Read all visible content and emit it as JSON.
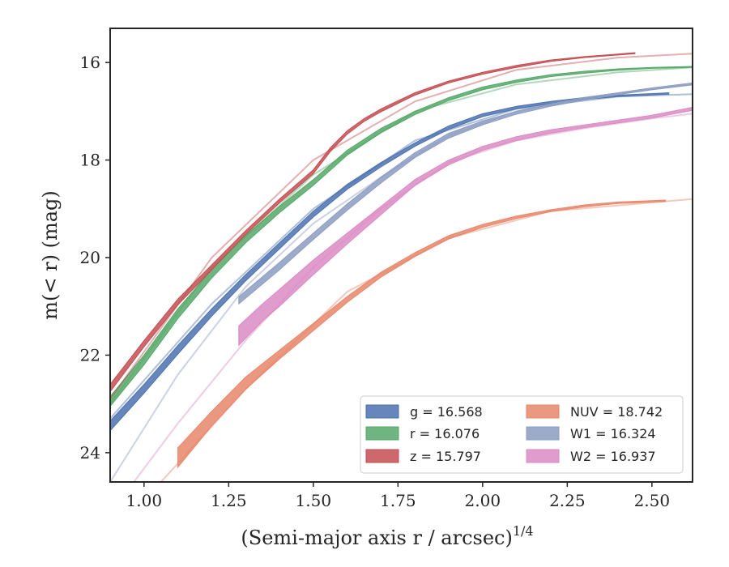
{
  "chart_data": {
    "type": "line",
    "xlabel": "(Semi-major axis r / arcsec)",
    "xlabel_exponent": "1/4",
    "ylabel": "m(< r) (mag)",
    "xlim": [
      0.9,
      2.62
    ],
    "ylim": [
      24.6,
      15.3
    ],
    "y_inverted": true,
    "xticks": [
      1.0,
      1.25,
      1.5,
      1.75,
      2.0,
      2.25,
      2.5
    ],
    "xtick_labels": [
      "1.00",
      "1.25",
      "1.50",
      "1.75",
      "2.00",
      "2.25",
      "2.50"
    ],
    "yticks": [
      16,
      18,
      20,
      22,
      24
    ],
    "ytick_labels": [
      "16",
      "18",
      "20",
      "22",
      "24"
    ],
    "grid": false,
    "legend_position": "lower-right",
    "legend_columns": 2,
    "series": [
      {
        "name": "g = 16.568",
        "band": "g",
        "mag": "16.568",
        "color": "#4C72B0",
        "legend_col": 0,
        "faint_x": [
          0.9,
          1.2,
          1.5,
          1.8,
          2.1,
          2.4,
          2.62
        ],
        "faint_y": [
          23.3,
          20.95,
          19.0,
          17.6,
          16.95,
          16.7,
          16.65
        ],
        "x": [
          0.9,
          1.0,
          1.1,
          1.2,
          1.3,
          1.4,
          1.5,
          1.6,
          1.7,
          1.8,
          1.9,
          2.0,
          2.1,
          2.2,
          2.3,
          2.4,
          2.55
        ],
        "y_low": [
          23.35,
          22.6,
          21.8,
          21.05,
          20.35,
          19.7,
          19.05,
          18.5,
          18.05,
          17.65,
          17.3,
          17.05,
          16.9,
          16.8,
          16.72,
          16.67,
          16.62
        ],
        "y_high": [
          23.55,
          22.78,
          21.98,
          21.2,
          20.48,
          19.82,
          19.17,
          18.6,
          18.14,
          17.72,
          17.37,
          17.11,
          16.95,
          16.84,
          16.76,
          16.7,
          16.65
        ]
      },
      {
        "name": "r = 16.076",
        "band": "r",
        "mag": "16.076",
        "color": "#55A868",
        "legend_col": 0,
        "faint_x": [
          0.9,
          1.2,
          1.5,
          1.8,
          2.1,
          2.4,
          2.62
        ],
        "faint_y": [
          23.0,
          20.2,
          18.3,
          17.0,
          16.45,
          16.2,
          16.1
        ],
        "x": [
          0.9,
          1.0,
          1.1,
          1.2,
          1.3,
          1.4,
          1.5,
          1.6,
          1.7,
          1.8,
          1.9,
          2.0,
          2.1,
          2.2,
          2.3,
          2.4,
          2.5,
          2.62
        ],
        "y_low": [
          22.85,
          22.0,
          21.05,
          20.25,
          19.55,
          18.95,
          18.4,
          17.8,
          17.35,
          17.0,
          16.72,
          16.5,
          16.36,
          16.25,
          16.18,
          16.13,
          16.1,
          16.08
        ],
        "y_high": [
          23.05,
          22.2,
          21.25,
          20.42,
          19.7,
          19.08,
          18.52,
          17.9,
          17.44,
          17.07,
          16.78,
          16.56,
          16.41,
          16.29,
          16.22,
          16.16,
          16.12,
          16.1
        ]
      },
      {
        "name": "z = 15.797",
        "band": "z",
        "mag": "15.797",
        "color": "#C44E52",
        "legend_col": 0,
        "faint_x": [
          0.9,
          1.2,
          1.5,
          1.8,
          2.1,
          2.4,
          2.62
        ],
        "faint_y": [
          22.9,
          20.0,
          18.0,
          16.8,
          16.15,
          15.9,
          15.82
        ],
        "x": [
          0.9,
          1.0,
          1.1,
          1.2,
          1.3,
          1.4,
          1.5,
          1.55,
          1.6,
          1.65,
          1.7,
          1.8,
          1.9,
          2.0,
          2.1,
          2.2,
          2.3,
          2.45
        ],
        "y_low": [
          22.6,
          21.7,
          20.85,
          20.15,
          19.45,
          18.8,
          18.2,
          17.75,
          17.4,
          17.15,
          16.95,
          16.62,
          16.38,
          16.2,
          16.06,
          15.95,
          15.88,
          15.8
        ],
        "y_high": [
          22.75,
          21.83,
          20.97,
          20.25,
          19.53,
          18.88,
          18.28,
          17.83,
          17.47,
          17.21,
          17.01,
          16.67,
          16.42,
          16.24,
          16.1,
          15.98,
          15.9,
          15.82
        ]
      },
      {
        "name": "NUV = 18.742",
        "band": "NUV",
        "mag": "18.742",
        "color": "#E8866A",
        "legend_col": 1,
        "faint_x": [
          1.05,
          1.3,
          1.6,
          1.9,
          2.2,
          2.62
        ],
        "faint_y": [
          24.6,
          22.7,
          20.7,
          19.6,
          19.05,
          18.8
        ],
        "x": [
          1.1,
          1.2,
          1.3,
          1.4,
          1.5,
          1.6,
          1.7,
          1.8,
          1.9,
          2.0,
          2.1,
          2.2,
          2.3,
          2.4,
          2.54
        ],
        "y_low": [
          23.9,
          23.15,
          22.45,
          21.9,
          21.35,
          20.8,
          20.3,
          19.9,
          19.55,
          19.32,
          19.15,
          19.02,
          18.92,
          18.86,
          18.82
        ],
        "y_high": [
          24.3,
          23.45,
          22.7,
          22.08,
          21.5,
          20.92,
          20.4,
          19.98,
          19.62,
          19.38,
          19.2,
          19.06,
          18.96,
          18.89,
          18.85
        ]
      },
      {
        "name": "W1 = 16.324",
        "band": "W1",
        "mag": "16.324",
        "color": "#8C9CC2",
        "legend_col": 1,
        "faint_x": [
          0.9,
          1.1,
          1.3,
          1.5,
          1.7,
          1.9,
          2.1,
          2.3,
          2.5,
          2.62
        ],
        "faint_y": [
          24.6,
          22.4,
          20.6,
          19.3,
          18.35,
          17.5,
          17.0,
          16.72,
          16.55,
          16.45
        ],
        "x": [
          1.28,
          1.4,
          1.5,
          1.6,
          1.7,
          1.8,
          1.9,
          2.0,
          2.1,
          2.2,
          2.3,
          2.4,
          2.5,
          2.62
        ],
        "y_low": [
          20.8,
          20.1,
          19.5,
          18.9,
          18.35,
          17.85,
          17.45,
          17.2,
          17.0,
          16.85,
          16.72,
          16.62,
          16.52,
          16.42
        ],
        "y_high": [
          20.95,
          20.25,
          19.63,
          19.03,
          18.47,
          17.95,
          17.55,
          17.28,
          17.06,
          16.9,
          16.77,
          16.66,
          16.56,
          16.46
        ]
      },
      {
        "name": "W2 = 16.937",
        "band": "W2",
        "mag": "16.937",
        "color": "#DA8BC3",
        "legend_col": 1,
        "faint_x": [
          0.97,
          1.1,
          1.3,
          1.5,
          1.7,
          1.9,
          2.1,
          2.3,
          2.5,
          2.62
        ],
        "faint_y": [
          24.6,
          23.4,
          21.7,
          20.2,
          19.0,
          18.05,
          17.6,
          17.35,
          17.15,
          17.05
        ],
        "x": [
          1.28,
          1.35,
          1.4,
          1.5,
          1.6,
          1.7,
          1.8,
          1.9,
          2.0,
          2.1,
          2.2,
          2.3,
          2.4,
          2.5,
          2.62
        ],
        "y_low": [
          21.4,
          20.95,
          20.65,
          20.05,
          19.5,
          18.95,
          18.4,
          18.0,
          17.72,
          17.52,
          17.38,
          17.28,
          17.18,
          17.08,
          16.92
        ],
        "y_high": [
          21.8,
          21.3,
          21.0,
          20.35,
          19.72,
          19.12,
          18.52,
          18.1,
          17.8,
          17.6,
          17.45,
          17.34,
          17.24,
          17.14,
          16.98
        ]
      }
    ]
  }
}
